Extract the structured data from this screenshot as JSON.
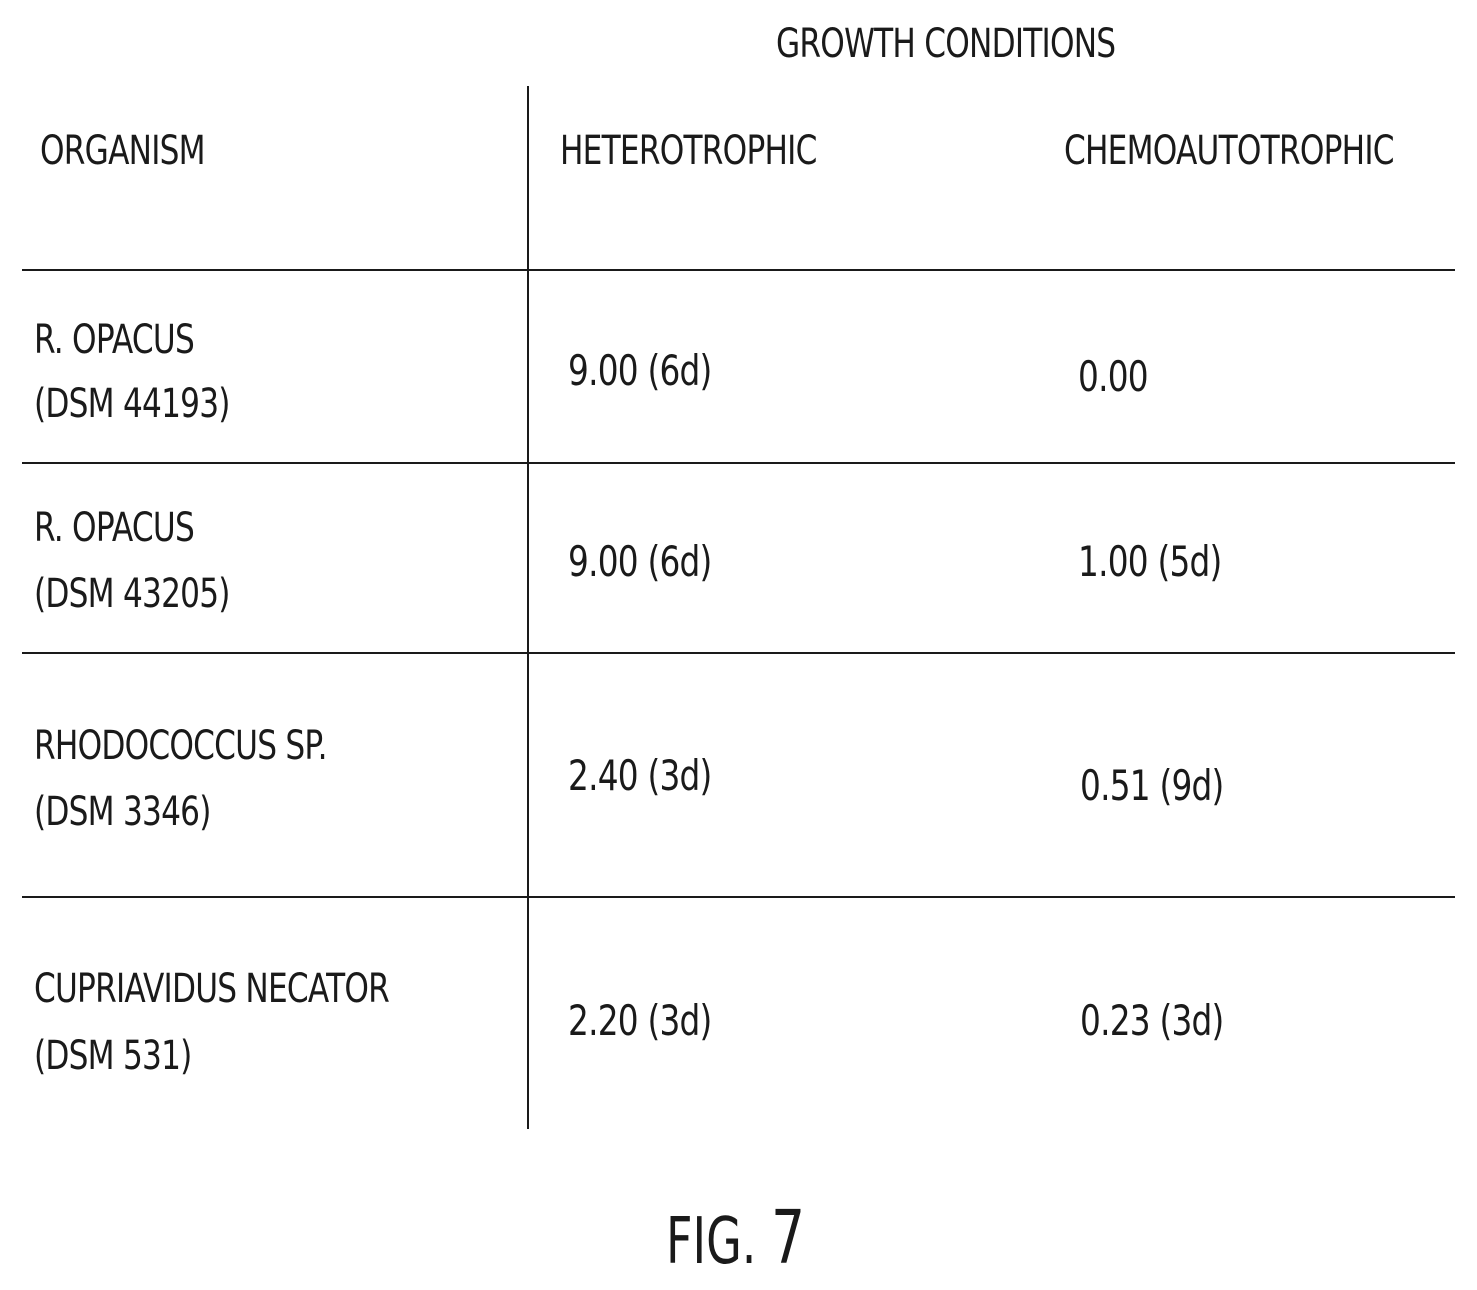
{
  "table": {
    "group_header": "GROWTH CONDITIONS",
    "columns": [
      "ORGANISM",
      "HETEROTROPHIC",
      "CHEMOAUTOTROPHIC"
    ],
    "rows": [
      {
        "organism_line1": "R. OPACUS",
        "organism_line2": "(DSM 44193)",
        "heterotrophic": "9.00 (6d)",
        "chemoautotrophic": "0.00"
      },
      {
        "organism_line1": "R. OPACUS",
        "organism_line2": "(DSM 43205)",
        "heterotrophic": "9.00 (6d)",
        "chemoautotrophic": "1.00 (5d)"
      },
      {
        "organism_line1": "RHODOCOCCUS SP.",
        "organism_line2": "(DSM 3346)",
        "heterotrophic": "2.40 (3d)",
        "chemoautotrophic": "0.51 (9d)"
      },
      {
        "organism_line1": "CUPRIAVIDUS NECATOR",
        "organism_line2": "(DSM 531)",
        "heterotrophic": "2.20 (3d)",
        "chemoautotrophic": "0.23 (3d)"
      }
    ]
  },
  "caption": {
    "prefix": "FIG.",
    "number": "7"
  }
}
